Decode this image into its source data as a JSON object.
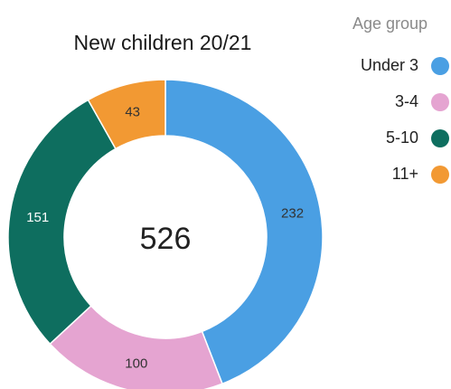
{
  "chart_data": {
    "type": "pie",
    "title": "New children 20/21",
    "total_label": "526",
    "legend_title": "Age group",
    "legend_placement": "right",
    "slices": [
      {
        "label": "Under 3",
        "value": 232,
        "color": "#4a9fe3"
      },
      {
        "label": "3-4",
        "value": 100,
        "color": "#e5a4d1"
      },
      {
        "label": "5-10",
        "value": 151,
        "color": "#0e6e5f"
      },
      {
        "label": "11+",
        "value": 43,
        "color": "#f29933"
      }
    ]
  }
}
